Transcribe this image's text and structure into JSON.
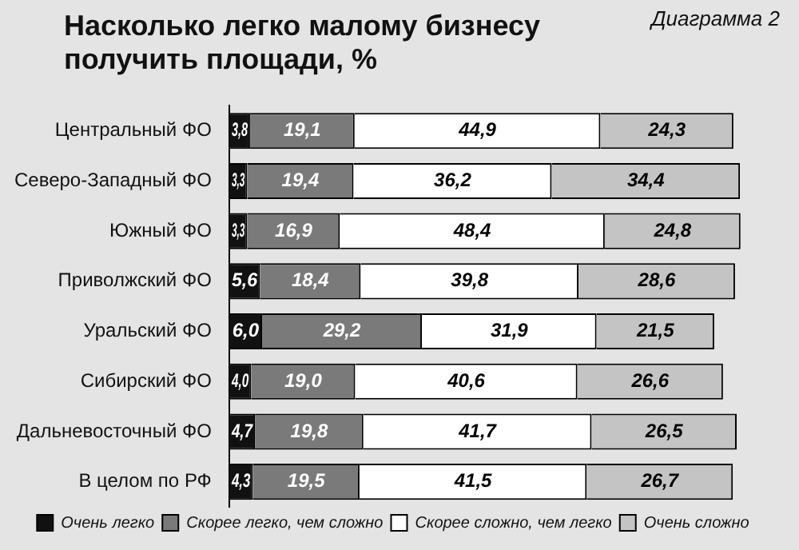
{
  "chart_data": {
    "type": "bar",
    "orientation": "horizontal",
    "stacked": true,
    "title": "Насколько легко малому бизнесу получить площади, %",
    "annotations": [
      "Диаграмма 2"
    ],
    "legend": "bottom",
    "categories": [
      "Центральный ФО",
      "Северо-Западный ФО",
      "Южный ФО",
      "Приволжский ФО",
      "Уральский ФО",
      "Сибирский ФО",
      "Дальневосточный ФО",
      "В целом по РФ"
    ],
    "series": [
      {
        "name": "Очень легко",
        "color": "#111111",
        "values": [
          3.8,
          3.3,
          3.3,
          5.6,
          6.0,
          4.0,
          4.7,
          4.3
        ],
        "value_labels": [
          "3,8",
          "3,3",
          "3,3",
          "5,6",
          "6,0",
          "4,0",
          "4,7",
          "4,3"
        ]
      },
      {
        "name": "Скорее легко, чем сложно",
        "color": "#7a7a7a",
        "values": [
          19.1,
          19.4,
          16.9,
          18.4,
          29.2,
          19.0,
          19.8,
          19.5
        ],
        "value_labels": [
          "19,1",
          "19,4",
          "16,9",
          "18,4",
          "29,2",
          "19,0",
          "19,8",
          "19,5"
        ]
      },
      {
        "name": "Скорее сложно, чем легко",
        "color": "#ffffff",
        "values": [
          44.9,
          36.2,
          48.4,
          39.8,
          31.9,
          40.6,
          41.7,
          41.5
        ],
        "value_labels": [
          "44,9",
          "36,2",
          "48,4",
          "39,8",
          "31,9",
          "40,6",
          "41,7",
          "41,5"
        ]
      },
      {
        "name": "Очень сложно",
        "color": "#c4c4c4",
        "values": [
          24.3,
          34.4,
          24.8,
          28.6,
          21.5,
          26.6,
          26.5,
          26.7
        ],
        "value_labels": [
          "24,3",
          "34,4",
          "24,8",
          "28,6",
          "21,5",
          "26,6",
          "26,5",
          "26,7"
        ]
      }
    ]
  }
}
